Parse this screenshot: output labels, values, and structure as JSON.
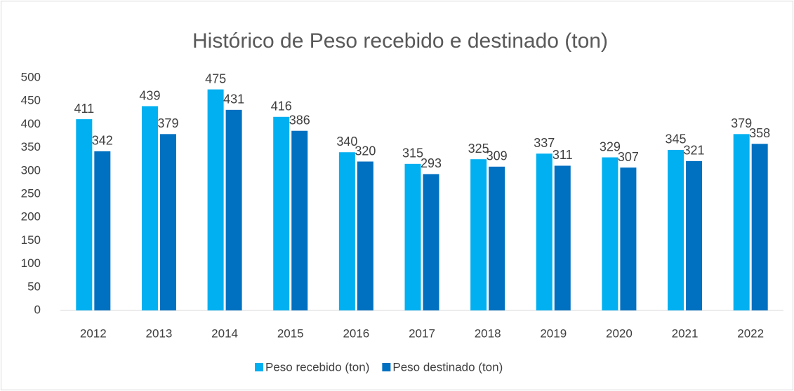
{
  "chart_data": {
    "type": "bar",
    "title": "Histórico de Peso recebido e destinado (ton)",
    "categories": [
      "2012",
      "2013",
      "2014",
      "2015",
      "2016",
      "2017",
      "2018",
      "2019",
      "2020",
      "2021",
      "2022"
    ],
    "series": [
      {
        "name": "Peso recebido (ton)",
        "color": "#00b0f0",
        "values": [
          411,
          439,
          475,
          416,
          340,
          315,
          325,
          337,
          329,
          345,
          379
        ]
      },
      {
        "name": "Peso destinado (ton)",
        "color": "#0070c0",
        "values": [
          342,
          379,
          431,
          386,
          320,
          293,
          309,
          311,
          307,
          321,
          358
        ]
      }
    ],
    "ylim": [
      0,
      500
    ],
    "yticks": [
      0,
      50,
      100,
      150,
      200,
      250,
      300,
      350,
      400,
      450,
      500
    ],
    "grid": false,
    "legend": "bottom"
  }
}
